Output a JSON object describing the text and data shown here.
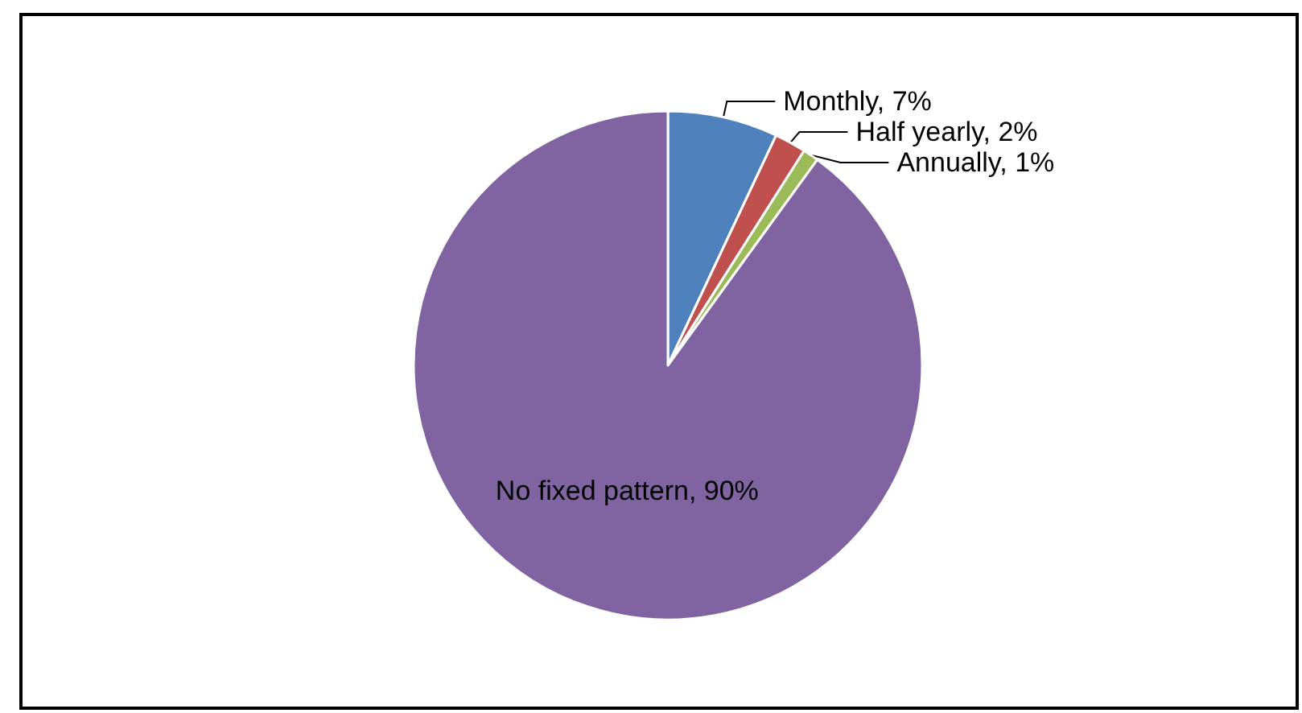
{
  "chart_data": {
    "type": "pie",
    "categories": [
      "Monthly",
      "Half yearly",
      "Annually",
      "No fixed pattern"
    ],
    "values": [
      7,
      2,
      1,
      90
    ],
    "colors": [
      "#4f81bd",
      "#c0504d",
      "#9bbb59",
      "#8064a2"
    ],
    "value_labels": [
      "7%",
      "2%",
      "1%",
      "90%"
    ],
    "legend": false
  }
}
